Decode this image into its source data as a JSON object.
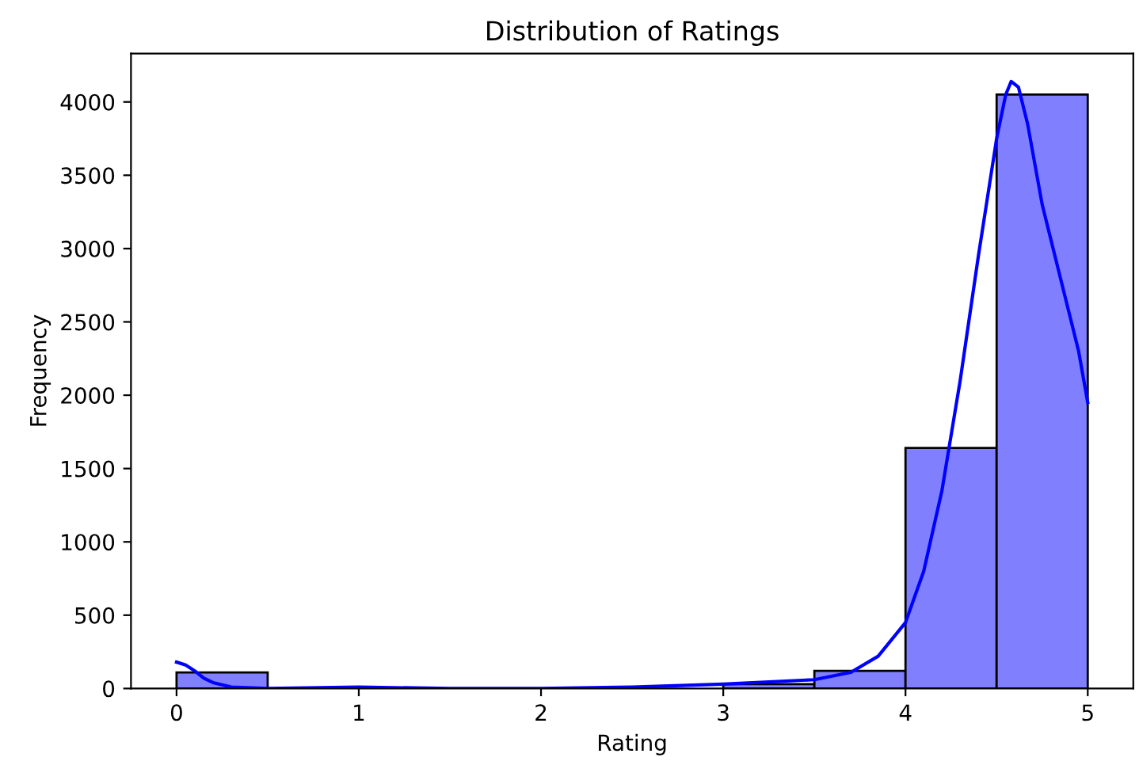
{
  "chart_data": {
    "type": "histogram",
    "title": "Distribution of Ratings",
    "xlabel": "Rating",
    "ylabel": "Frequency",
    "bins": [
      0,
      0.5,
      1,
      1.5,
      2,
      2.5,
      3,
      3.5,
      4,
      4.5,
      5
    ],
    "values": [
      110,
      0,
      0,
      0,
      0,
      0,
      30,
      120,
      1640,
      4050
    ],
    "color": "#8080ff",
    "series": [
      {
        "type": "line",
        "color": "#0000ff",
        "x": [
          0,
          0.05,
          0.1,
          0.15,
          0.2,
          0.3,
          0.5,
          1,
          1.5,
          2,
          2.5,
          3,
          3.5,
          3.7,
          3.85,
          4,
          4.1,
          4.2,
          4.3,
          4.4,
          4.5,
          4.55,
          4.58,
          4.62,
          4.67,
          4.75,
          4.85,
          4.95,
          5
        ],
        "values": [
          180,
          160,
          120,
          70,
          40,
          10,
          0,
          10,
          0,
          0,
          10,
          30,
          60,
          110,
          220,
          450,
          800,
          1350,
          2100,
          2950,
          3750,
          4050,
          4140,
          4100,
          3850,
          3300,
          2800,
          2300,
          1950
        ]
      }
    ],
    "xlim": [
      -0.25,
      5.25
    ],
    "ylim": [
      0,
      4330
    ],
    "xticks": [
      0,
      1,
      2,
      3,
      4,
      5
    ],
    "yticks": [
      0,
      500,
      1000,
      1500,
      2000,
      2500,
      3000,
      3500,
      4000
    ],
    "grid": false,
    "legend": false
  }
}
